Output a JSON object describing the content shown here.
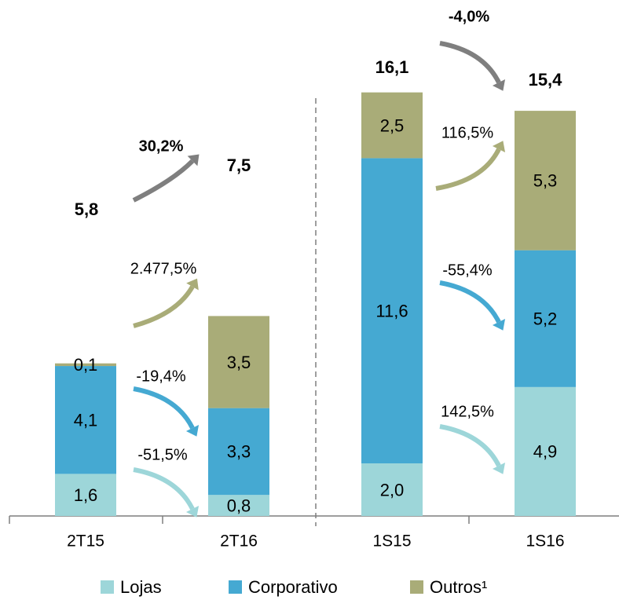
{
  "chart_data": {
    "type": "stacked_bar",
    "categories": [
      "2T15",
      "2T16",
      "1S15",
      "1S16"
    ],
    "series": [
      {
        "name": "Lojas",
        "color": "#9dd6d9",
        "values": [
          1.6,
          0.8,
          2.0,
          4.9
        ],
        "value_labels": [
          "1,6",
          "0,8",
          "2,0",
          "4,9"
        ]
      },
      {
        "name": "Corporativo",
        "color": "#45a9d2",
        "values": [
          4.1,
          3.3,
          11.6,
          5.2
        ],
        "value_labels": [
          "4,1",
          "3,3",
          "11,6",
          "5,2"
        ]
      },
      {
        "name": "Outros¹",
        "color": "#a9ac78",
        "values": [
          0.1,
          3.5,
          2.5,
          5.3
        ],
        "value_labels": [
          "0,1",
          "3,5",
          "2,5",
          "5,3"
        ]
      }
    ],
    "totals": [
      5.8,
      7.5,
      16.1,
      15.4
    ],
    "total_labels": [
      "5,8",
      "7,5",
      "16,1",
      "15,4"
    ],
    "ylim": [
      0,
      18
    ],
    "changes": [
      {
        "label": "30,2%",
        "color": "#7f7f7f",
        "bold": true
      },
      {
        "label": "2.477,5%",
        "color": "#a9ac78",
        "bold": false
      },
      {
        "label": "-19,4%",
        "color": "#45a9d2",
        "bold": false
      },
      {
        "label": "-51,5%",
        "color": "#9dd6d9",
        "bold": false
      },
      {
        "label": "-4,0%",
        "color": "#7f7f7f",
        "bold": true
      },
      {
        "label": "116,5%",
        "color": "#a9ac78",
        "bold": false
      },
      {
        "label": "-55,4%",
        "color": "#45a9d2",
        "bold": false
      },
      {
        "label": "142,5%",
        "color": "#9dd6d9",
        "bold": false
      }
    ]
  }
}
